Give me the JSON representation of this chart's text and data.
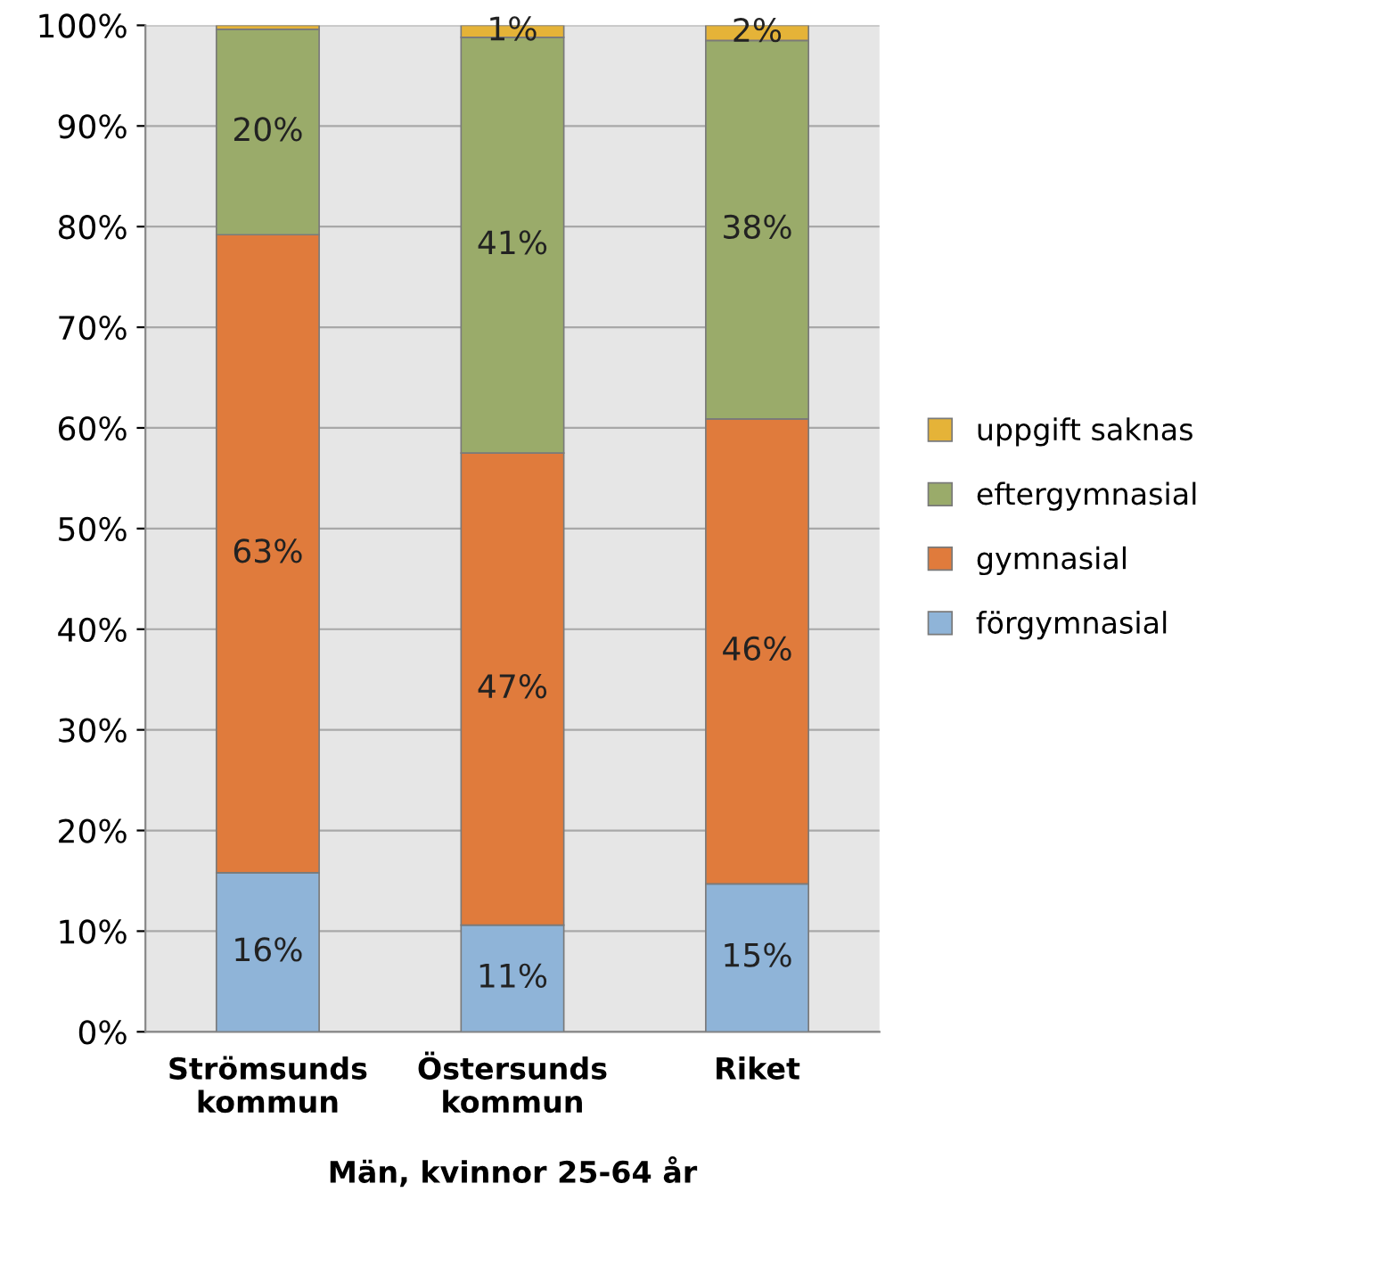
{
  "chart_data": {
    "type": "bar",
    "stacked": true,
    "xlabel": "Män, kvinnor 25-64 år",
    "categories": [
      "Strömsunds\nkommun",
      "Östersunds\nkommun",
      "Riket"
    ],
    "series": [
      {
        "name": "förgymnasial",
        "color": "#8fb4d8",
        "values": [
          15.8,
          10.6,
          14.7
        ],
        "value_labels": [
          "16%",
          "11%",
          "15%"
        ]
      },
      {
        "name": "gymnasial",
        "color": "#e07b3c",
        "values": [
          63.4,
          46.9,
          46.2
        ],
        "value_labels": [
          "63%",
          "47%",
          "46%"
        ]
      },
      {
        "name": "eftergymnasial",
        "color": "#9aab6a",
        "values": [
          20.4,
          41.3,
          37.6
        ],
        "value_labels": [
          "20%",
          "41%",
          "38%"
        ]
      },
      {
        "name": "uppgift saknas",
        "color": "#e5b338",
        "values": [
          0.4,
          1.2,
          1.5
        ],
        "value_labels": [
          null,
          "1%",
          "2%"
        ]
      }
    ],
    "ylim": [
      0,
      100
    ],
    "yticks": [
      {
        "value": 0,
        "label": "0%"
      },
      {
        "value": 10,
        "label": "10%"
      },
      {
        "value": 20,
        "label": "20%"
      },
      {
        "value": 30,
        "label": "30%"
      },
      {
        "value": 40,
        "label": "40%"
      },
      {
        "value": 50,
        "label": "50%"
      },
      {
        "value": 60,
        "label": "60%"
      },
      {
        "value": 70,
        "label": "70%"
      },
      {
        "value": 80,
        "label": "80%"
      },
      {
        "value": 90,
        "label": "90%"
      },
      {
        "value": 100,
        "label": "100%"
      }
    ],
    "grid": "y",
    "legend": "right"
  }
}
